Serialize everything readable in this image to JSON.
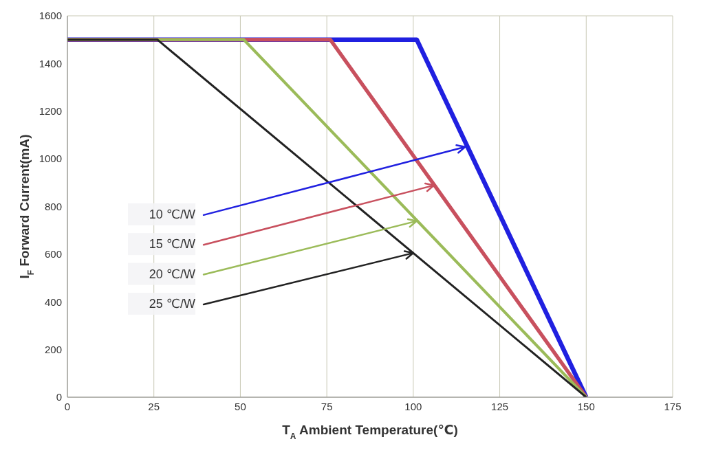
{
  "chart_data": {
    "type": "line",
    "xlabel": "T$_{A}$ Ambient Temperature(℃)",
    "ylabel": "I$_{F}$ Forward Current(mA)",
    "xlim": [
      0,
      175
    ],
    "xticks": [
      0,
      25,
      50,
      75,
      100,
      125,
      150,
      175
    ],
    "ylim": [
      0,
      1600
    ],
    "yticks": [
      0,
      200,
      400,
      600,
      800,
      1000,
      1200,
      1400,
      1600
    ],
    "grid": true,
    "series": [
      {
        "color": "#2020e0",
        "x": [
          0,
          101,
          150
        ],
        "values": [
          1500,
          1500,
          0
        ]
      },
      {
        "color": "#c8505e",
        "x": [
          0,
          76,
          150
        ],
        "values": [
          1500,
          1500,
          0
        ]
      },
      {
        "color": "#9bbb59",
        "x": [
          0,
          51,
          150
        ],
        "values": [
          1500,
          1500,
          0
        ]
      },
      {
        "color": "#222222",
        "x": [
          0,
          26,
          150
        ],
        "values": [
          1500,
          1500,
          0
        ]
      }
    ],
    "annotations": [
      {
        "text": "10 ℃/W",
        "x": 115,
        "y": 1050
      },
      {
        "text": "15 ℃/W",
        "x": 106,
        "y": 889
      },
      {
        "text": "20 ℃/W",
        "x": 101,
        "y": 739
      },
      {
        "text": "25 ℃/W",
        "x": 100,
        "y": 605
      }
    ]
  }
}
